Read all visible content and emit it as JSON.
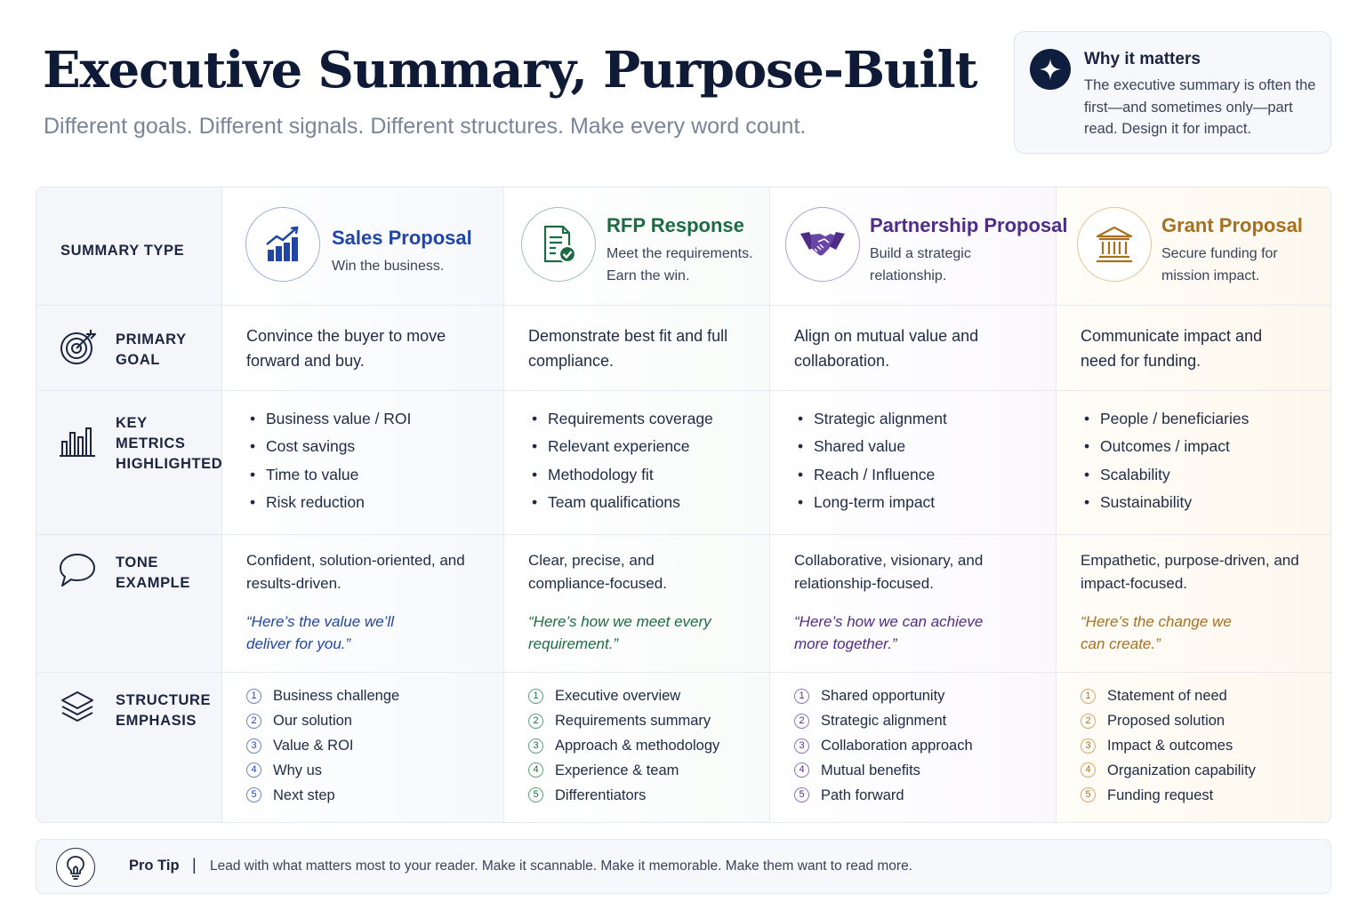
{
  "header": {
    "title": "Executive Summary, Purpose-Built",
    "subtitle": "Different goals. Different signals. Different structures. Make every word count."
  },
  "why_box": {
    "icon": "sparkle-icon",
    "title": "Why it matters",
    "text": "The executive summary is often the first—and sometimes only—part read. Design it for impact."
  },
  "row_labels": {
    "summary_type": "SUMMARY TYPE",
    "primary_goal": "PRIMARY GOAL",
    "key_metrics": "KEY METRICS HIGHLIGHTED",
    "tone": "TONE EXAMPLE",
    "structure": "STRUCTURE EMPHASIS"
  },
  "row_icons": [
    "target-icon",
    "bar-chart-icon",
    "speech-bubble-icon",
    "layers-icon"
  ],
  "columns": [
    {
      "icon": "growth-chart-icon",
      "accent": "#1f45a8",
      "title": "Sales Proposal",
      "subtitle": "Win the business.",
      "goal": "Convince the buyer to move forward and buy.",
      "metrics": [
        "Business value / ROI",
        "Cost savings",
        "Time to value",
        "Risk reduction"
      ],
      "tone": "Confident, solution-oriented, and results-driven.",
      "quote": "“Here’s the value we’ll deliver for you.”",
      "steps": [
        "Business challenge",
        "Our solution",
        "Value & ROI",
        "Why us",
        "Next step"
      ]
    },
    {
      "icon": "checklist-document-icon",
      "accent": "#1c6b44",
      "title": "RFP Response",
      "subtitle": "Meet the requirements. Earn the win.",
      "goal": "Demonstrate best fit and full compliance.",
      "metrics": [
        "Requirements coverage",
        "Relevant experience",
        "Methodology fit",
        "Team qualifications"
      ],
      "tone": "Clear, precise, and compliance-focused.",
      "quote": "“Here’s how we meet every requirement.”",
      "steps": [
        "Executive overview",
        "Requirements summary",
        "Approach & methodology",
        "Experience & team",
        "Differentiators"
      ]
    },
    {
      "icon": "handshake-icon",
      "accent": "#4f2c86",
      "title": "Partnership Proposal",
      "subtitle": "Build a strategic relationship.",
      "goal": "Align on mutual value and collaboration.",
      "metrics": [
        "Strategic alignment",
        "Shared value",
        "Reach / Influence",
        "Long-term impact"
      ],
      "tone": "Collaborative, visionary, and relationship-focused.",
      "quote": "“Here’s how we can achieve more together.”",
      "steps": [
        "Shared opportunity",
        "Strategic alignment",
        "Collaboration approach",
        "Mutual benefits",
        "Path forward"
      ]
    },
    {
      "icon": "institution-icon",
      "accent": "#a6701f",
      "title": "Grant Proposal",
      "subtitle": "Secure funding for mission impact.",
      "goal": "Communicate impact and need for funding.",
      "metrics": [
        "People / beneficiaries",
        "Outcomes / impact",
        "Scalability",
        "Sustainability"
      ],
      "tone": "Empathetic, purpose-driven, and impact-focused.",
      "quote": "“Here’s the change we can create.”",
      "steps": [
        "Statement of need",
        "Proposed solution",
        "Impact & outcomes",
        "Organization capability",
        "Funding request"
      ]
    }
  ],
  "pro_tip": {
    "icon": "lightbulb-icon",
    "label": "Pro Tip",
    "separator": "|",
    "text": "Lead with what matters most to your reader. Make it scannable. Make it memorable. Make them want to read more."
  }
}
